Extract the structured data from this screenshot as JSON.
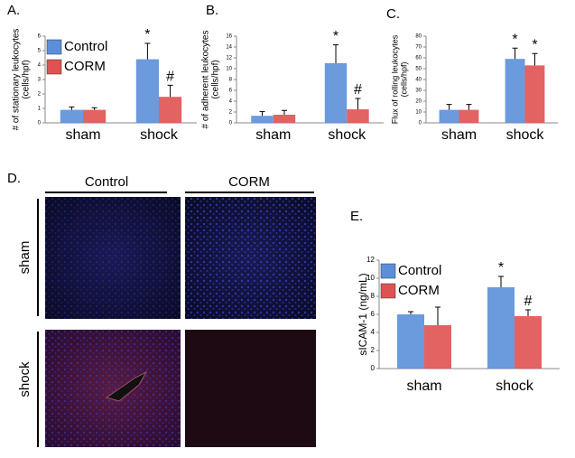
{
  "chart_data": [
    {
      "type": "bar",
      "panel_label": "A.",
      "ylabel": [
        "# of stationary leukocytes",
        "(cells/hpf)"
      ],
      "categories": [
        "sham",
        "shock"
      ],
      "ylim": [
        0,
        6
      ],
      "yticks": [
        0,
        1,
        2,
        3,
        4,
        5,
        6
      ],
      "legend": "top-left",
      "series": [
        {
          "name": "Control",
          "color": "#5b8fd9",
          "values": [
            0.9,
            4.4
          ],
          "errors": [
            0.2,
            1.1
          ],
          "annotations": [
            null,
            "*"
          ]
        },
        {
          "name": "CORM",
          "color": "#e05252",
          "values": [
            0.9,
            1.8
          ],
          "errors": [
            0.15,
            0.8
          ],
          "annotations": [
            null,
            "#"
          ]
        }
      ]
    },
    {
      "type": "bar",
      "panel_label": "B.",
      "ylabel": [
        "# of adherent leukocytes",
        "(cells/hpf)"
      ],
      "categories": [
        "sham",
        "shock"
      ],
      "ylim": [
        0,
        16
      ],
      "yticks": [
        0,
        2,
        4,
        6,
        8,
        10,
        12,
        14,
        16
      ],
      "series": [
        {
          "name": "Control",
          "color": "#5b8fd9",
          "values": [
            1.3,
            11
          ],
          "errors": [
            0.8,
            3.4
          ],
          "annotations": [
            null,
            "*"
          ]
        },
        {
          "name": "CORM",
          "color": "#e05252",
          "values": [
            1.5,
            2.5
          ],
          "errors": [
            0.8,
            2
          ],
          "annotations": [
            null,
            "#"
          ]
        }
      ]
    },
    {
      "type": "bar",
      "panel_label": "C.",
      "ylabel": [
        "Flux of rolling leukocytes",
        "(cells/hpf)"
      ],
      "categories": [
        "sham",
        "shock"
      ],
      "ylim": [
        0,
        80
      ],
      "yticks": [
        0,
        10,
        20,
        30,
        40,
        50,
        60,
        70,
        80
      ],
      "series": [
        {
          "name": "Control",
          "color": "#5b8fd9",
          "values": [
            12,
            59
          ],
          "errors": [
            5,
            10
          ],
          "annotations": [
            null,
            "*"
          ]
        },
        {
          "name": "CORM",
          "color": "#e05252",
          "values": [
            12,
            53
          ],
          "errors": [
            5,
            11
          ],
          "annotations": [
            null,
            "*"
          ]
        }
      ]
    },
    {
      "type": "bar",
      "panel_label": "E.",
      "ylabel": [
        "sICAM-1  (ng/mL)"
      ],
      "categories": [
        "sham",
        "shock"
      ],
      "ylim": [
        0,
        12
      ],
      "yticks": [
        0,
        2,
        4,
        6,
        8,
        10,
        12
      ],
      "legend": "top-left",
      "series": [
        {
          "name": "Control",
          "color": "#5b8fd9",
          "values": [
            6.0,
            9.0
          ],
          "errors": [
            0.3,
            1.2
          ],
          "annotations": [
            null,
            "*"
          ]
        },
        {
          "name": "CORM",
          "color": "#e05252",
          "values": [
            4.8,
            5.8
          ],
          "errors": [
            2.0,
            0.7
          ],
          "annotations": [
            null,
            "#"
          ]
        }
      ]
    }
  ],
  "panel_d": {
    "label": "D.",
    "columns": [
      "Control",
      "CORM"
    ],
    "rows": [
      "sham",
      "shock"
    ]
  }
}
